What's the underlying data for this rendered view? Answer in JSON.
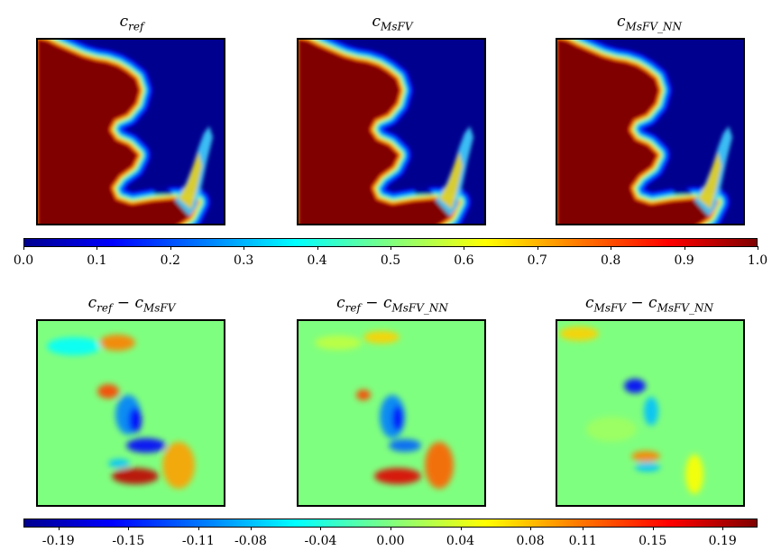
{
  "chart_data": [
    {
      "type": "heatmap",
      "titles": [
        "c_ref",
        "c_MsFV",
        "c_MsFV_NN"
      ],
      "title_parts": [
        {
          "base": "c",
          "sub": "ref"
        },
        {
          "base": "c",
          "sub": "MsFV"
        },
        {
          "base": "c",
          "sub": "MsFV_NN"
        }
      ],
      "colormap": "jet",
      "colorbar": {
        "range": [
          0.0,
          1.0
        ],
        "ticks": [
          "0.0",
          "0.1",
          "0.2",
          "0.3",
          "0.4",
          "0.5",
          "0.6",
          "0.7",
          "0.8",
          "0.9",
          "1.0"
        ]
      }
    },
    {
      "type": "heatmap",
      "titles": [
        "c_ref − c_MsFV",
        "c_ref − c_MsFV_NN",
        "c_MsFV − c_MsFV_NN"
      ],
      "title_parts": [
        [
          {
            "base": "c",
            "sub": "ref"
          },
          {
            "base": "c",
            "sub": "MsFV"
          }
        ],
        [
          {
            "base": "c",
            "sub": "ref"
          },
          {
            "base": "c",
            "sub": "MsFV_NN"
          }
        ],
        [
          {
            "base": "c",
            "sub": "MsFV"
          },
          {
            "base": "c",
            "sub": "MsFV_NN"
          }
        ]
      ],
      "colormap": "jet",
      "colorbar": {
        "range": [
          -0.21,
          0.21
        ],
        "ticks": [
          "-0.19",
          "-0.15",
          "-0.11",
          "-0.08",
          "-0.04",
          "0.00",
          "0.04",
          "0.08",
          "0.11",
          "0.15",
          "0.19"
        ]
      }
    }
  ],
  "colors": {
    "jet_dark_red": "#800000",
    "jet_dark_blue": "#00008f",
    "jet_green": "#7fff7f"
  }
}
